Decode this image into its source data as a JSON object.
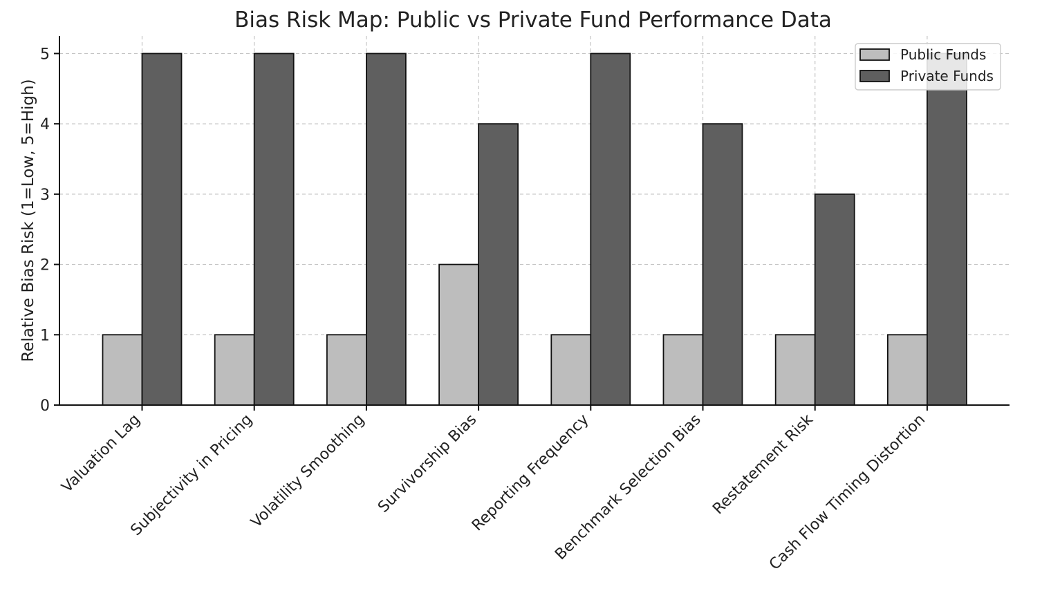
{
  "chart_data": {
    "type": "bar",
    "title": "Bias Risk Map: Public vs Private Fund Performance Data",
    "xlabel": "",
    "ylabel": "Relative Bias Risk (1=Low, 5=High)",
    "ylim": [
      0,
      5.25
    ],
    "yticks": [
      "0",
      "1",
      "2",
      "3",
      "4",
      "5"
    ],
    "grid": true,
    "legend_position": "top-right",
    "categories": [
      "Valuation Lag",
      "Subjectivity in Pricing",
      "Volatility Smoothing",
      "Survivorship Bias",
      "Reporting Frequency",
      "Benchmark Selection Bias",
      "Restatement Risk",
      "Cash Flow Timing Distortion"
    ],
    "series": [
      {
        "name": "Public Funds",
        "color": "#bdbdbd",
        "values": [
          1,
          1,
          1,
          2,
          1,
          1,
          1,
          1
        ]
      },
      {
        "name": "Private Funds",
        "color": "#5f5f5f",
        "values": [
          5,
          5,
          5,
          4,
          5,
          4,
          3,
          5
        ]
      }
    ]
  }
}
